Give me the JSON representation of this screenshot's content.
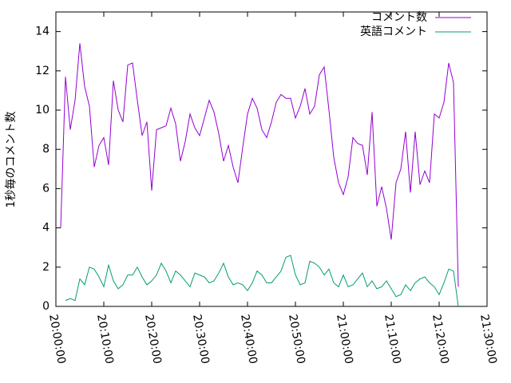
{
  "chart_data": {
    "type": "line",
    "y_label": "1秒毎のコメント数",
    "x": [
      "20:01:00",
      "20:02:00",
      "20:03:00",
      "20:04:00",
      "20:05:00",
      "20:06:00",
      "20:07:00",
      "20:08:00",
      "20:09:00",
      "20:10:00",
      "20:11:00",
      "20:12:00",
      "20:13:00",
      "20:14:00",
      "20:15:00",
      "20:16:00",
      "20:17:00",
      "20:18:00",
      "20:19:00",
      "20:20:00",
      "20:21:00",
      "20:22:00",
      "20:23:00",
      "20:24:00",
      "20:25:00",
      "20:26:00",
      "20:27:00",
      "20:28:00",
      "20:29:00",
      "20:30:00",
      "20:31:00",
      "20:32:00",
      "20:33:00",
      "20:34:00",
      "20:35:00",
      "20:36:00",
      "20:37:00",
      "20:38:00",
      "20:39:00",
      "20:40:00",
      "20:41:00",
      "20:42:00",
      "20:43:00",
      "20:44:00",
      "20:45:00",
      "20:46:00",
      "20:47:00",
      "20:48:00",
      "20:49:00",
      "20:50:00",
      "20:51:00",
      "20:52:00",
      "20:53:00",
      "20:54:00",
      "20:55:00",
      "20:56:00",
      "20:57:00",
      "20:58:00",
      "20:59:00",
      "21:00:00",
      "21:01:00",
      "21:02:00",
      "21:03:00",
      "21:04:00",
      "21:05:00",
      "21:06:00",
      "21:07:00",
      "21:08:00",
      "21:09:00",
      "21:10:00",
      "21:11:00",
      "21:12:00",
      "21:13:00",
      "21:14:00",
      "21:15:00",
      "21:16:00",
      "21:17:00",
      "21:18:00",
      "21:19:00",
      "21:20:00",
      "21:21:00",
      "21:22:00",
      "21:23:00",
      "21:24:00"
    ],
    "series": [
      {
        "name": "コメント数",
        "color": "#9400d3",
        "values": [
          4.0,
          11.7,
          9.0,
          10.5,
          13.4,
          11.2,
          10.2,
          7.1,
          8.2,
          8.6,
          7.2,
          11.5,
          10.0,
          9.4,
          12.3,
          12.4,
          10.5,
          8.7,
          9.4,
          5.9,
          9.0,
          9.1,
          9.2,
          10.1,
          9.3,
          7.4,
          8.4,
          9.8,
          9.1,
          8.7,
          9.6,
          10.5,
          9.9,
          8.8,
          7.4,
          8.2,
          7.1,
          6.3,
          8.1,
          9.8,
          10.6,
          10.1,
          9.0,
          8.6,
          9.4,
          10.4,
          10.8,
          10.6,
          10.6,
          9.6,
          10.2,
          11.1,
          9.8,
          10.2,
          11.8,
          12.2,
          10.0,
          7.6,
          6.3,
          5.7,
          6.6,
          8.6,
          8.3,
          8.2,
          6.7,
          9.9,
          5.1,
          6.1,
          5.0,
          3.4,
          6.3,
          7.0,
          8.9,
          5.8,
          8.9,
          6.2,
          6.9,
          6.3,
          9.8,
          9.6,
          10.4,
          12.4,
          11.4,
          1.0
        ]
      },
      {
        "name": "英語コメント",
        "color": "#009e73",
        "values": [
          null,
          0.3,
          0.4,
          0.3,
          1.4,
          1.1,
          2.0,
          1.9,
          1.5,
          1.0,
          2.1,
          1.3,
          0.9,
          1.1,
          1.6,
          1.6,
          2.0,
          1.5,
          1.1,
          1.3,
          1.6,
          2.2,
          1.8,
          1.2,
          1.8,
          1.6,
          1.3,
          1.0,
          1.7,
          1.6,
          1.5,
          1.2,
          1.3,
          1.7,
          2.2,
          1.5,
          1.1,
          1.2,
          1.1,
          0.8,
          1.2,
          1.8,
          1.6,
          1.2,
          1.2,
          1.5,
          1.8,
          2.5,
          2.6,
          1.6,
          1.1,
          1.2,
          2.3,
          2.2,
          2.0,
          1.6,
          1.9,
          1.2,
          1.0,
          1.6,
          1.0,
          1.1,
          1.4,
          1.7,
          1.0,
          1.3,
          0.9,
          1.0,
          1.3,
          0.9,
          0.5,
          0.6,
          1.1,
          0.8,
          1.2,
          1.4,
          1.5,
          1.2,
          1.0,
          0.6,
          1.2,
          1.9,
          1.8,
          0.0
        ]
      }
    ],
    "xlim": [
      "20:00:00",
      "21:30:00"
    ],
    "xticks": [
      "20:00:00",
      "20:10:00",
      "20:20:00",
      "20:30:00",
      "20:40:00",
      "20:50:00",
      "21:00:00",
      "21:10:00",
      "21:20:00",
      "21:30:00"
    ],
    "ylim": [
      0,
      15
    ],
    "yticks": [
      0,
      2,
      4,
      6,
      8,
      10,
      12,
      14
    ],
    "legend": "top-right"
  }
}
